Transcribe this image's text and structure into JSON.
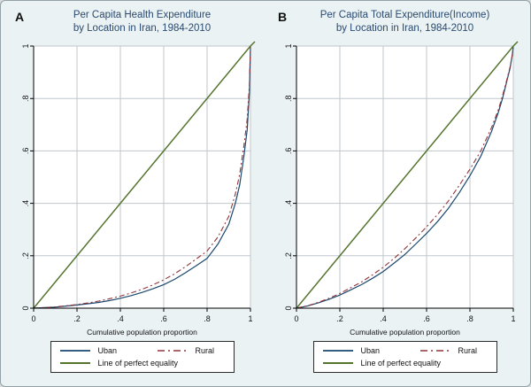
{
  "figure": {
    "background": "#eaf2f3",
    "plot_background": "#ffffff",
    "grid_color": "#bfc7cd",
    "axis_color": "#000000",
    "title_color": "#2b4a70",
    "panels": [
      {
        "letter": "A",
        "title_line1": "Per Capita Health Expenditure",
        "title_line2": "by Location in Iran, 1984-2010",
        "xlabel": "Cumulative population proportion"
      },
      {
        "letter": "B",
        "title_line1": "Per Capita Total Expenditure(Income)",
        "title_line2": "by Location in Iran, 1984-2010",
        "xlabel": "Cumulative population proportion"
      }
    ]
  },
  "chart_data": [
    {
      "type": "line",
      "title": "Per Capita Health Expenditure by Location in Iran, 1984-2010",
      "xlabel": "Cumulative population proportion",
      "ylabel": "",
      "xlim": [
        0,
        1
      ],
      "ylim": [
        0,
        1
      ],
      "grid": true,
      "legend_position": "bottom",
      "ticks": {
        "values": [
          0,
          0.2,
          0.4,
          0.6,
          0.8,
          1
        ],
        "labels": [
          "0",
          ".2",
          ".4",
          ".6",
          ".8",
          "1"
        ]
      },
      "x": [
        0,
        0.05,
        0.1,
        0.15,
        0.2,
        0.25,
        0.3,
        0.35,
        0.4,
        0.45,
        0.5,
        0.55,
        0.6,
        0.65,
        0.7,
        0.75,
        0.8,
        0.85,
        0.9,
        0.93,
        0.95,
        0.97,
        0.985,
        0.995,
        1
      ],
      "series": [
        {
          "name": "Uban",
          "color": "#1a476f",
          "dash": "",
          "width": 1.2,
          "y": [
            0,
            0.002,
            0.004,
            0.008,
            0.012,
            0.017,
            0.022,
            0.029,
            0.038,
            0.048,
            0.06,
            0.074,
            0.09,
            0.11,
            0.135,
            0.162,
            0.19,
            0.245,
            0.32,
            0.4,
            0.47,
            0.58,
            0.68,
            0.82,
            1
          ]
        },
        {
          "name": "Rural",
          "color": "#90353b",
          "dash": "6 3 2 3",
          "width": 1.1,
          "y": [
            0,
            0.002,
            0.005,
            0.009,
            0.014,
            0.02,
            0.027,
            0.036,
            0.046,
            0.058,
            0.072,
            0.089,
            0.108,
            0.131,
            0.158,
            0.188,
            0.218,
            0.272,
            0.35,
            0.435,
            0.51,
            0.62,
            0.72,
            0.85,
            1
          ]
        },
        {
          "name": "Line of perfect equality",
          "color": "#55752f",
          "dash": "",
          "width": 1.5,
          "overshoot": true,
          "x": [
            0,
            1
          ],
          "y": [
            0,
            1
          ]
        }
      ]
    },
    {
      "type": "line",
      "title": "Per Capita Total Expenditure(Income) by Location in Iran, 1984-2010",
      "xlabel": "Cumulative population proportion",
      "ylabel": "",
      "xlim": [
        0,
        1
      ],
      "ylim": [
        0,
        1
      ],
      "grid": true,
      "legend_position": "bottom",
      "ticks": {
        "values": [
          0,
          0.2,
          0.4,
          0.6,
          0.8,
          1
        ],
        "labels": [
          "0",
          ".2",
          ".4",
          ".6",
          ".8",
          "1"
        ]
      },
      "x": [
        0,
        0.05,
        0.1,
        0.15,
        0.2,
        0.25,
        0.3,
        0.35,
        0.4,
        0.45,
        0.5,
        0.55,
        0.6,
        0.65,
        0.7,
        0.75,
        0.8,
        0.85,
        0.9,
        0.93,
        0.95,
        0.97,
        0.985,
        0.995,
        1
      ],
      "series": [
        {
          "name": "Uban",
          "color": "#1a476f",
          "dash": "",
          "width": 1.2,
          "y": [
            0,
            0.008,
            0.02,
            0.034,
            0.05,
            0.07,
            0.09,
            0.114,
            0.14,
            0.172,
            0.205,
            0.245,
            0.285,
            0.33,
            0.38,
            0.44,
            0.505,
            0.58,
            0.675,
            0.745,
            0.8,
            0.865,
            0.915,
            0.965,
            1
          ]
        },
        {
          "name": "Rural",
          "color": "#90353b",
          "dash": "6 3 2 3",
          "width": 1.1,
          "y": [
            0,
            0.009,
            0.022,
            0.038,
            0.056,
            0.078,
            0.1,
            0.127,
            0.156,
            0.19,
            0.227,
            0.268,
            0.31,
            0.357,
            0.408,
            0.468,
            0.53,
            0.6,
            0.69,
            0.755,
            0.81,
            0.87,
            0.92,
            0.965,
            1
          ]
        },
        {
          "name": "Line of perfect equality",
          "color": "#55752f",
          "dash": "",
          "width": 1.5,
          "overshoot": true,
          "x": [
            0,
            1
          ],
          "y": [
            0,
            1
          ]
        }
      ]
    }
  ]
}
